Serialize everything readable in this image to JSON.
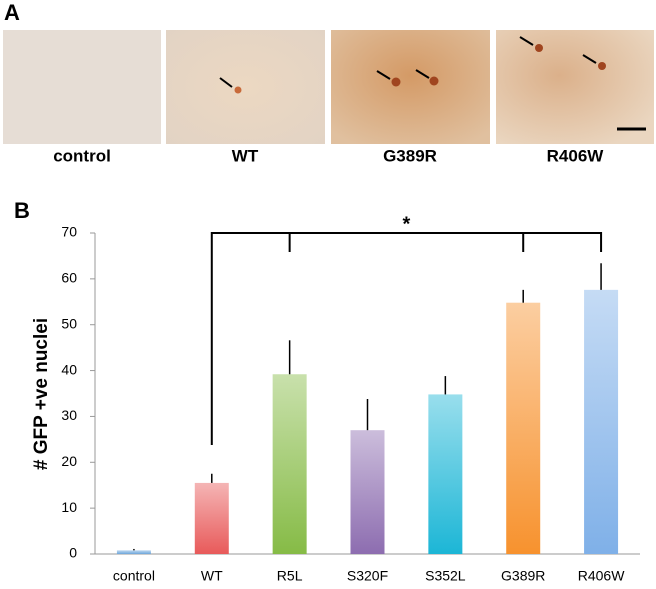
{
  "panel_a": {
    "label": "A",
    "images": [
      "control",
      "WT",
      "G389R",
      "R406W"
    ]
  },
  "panel_b": {
    "label": "B"
  },
  "chart_data": {
    "type": "bar",
    "categories": [
      "control",
      "WT",
      "R5L",
      "S320F",
      "S352L",
      "G389R",
      "R406W"
    ],
    "values": [
      0.8,
      15.5,
      39.2,
      27,
      34.8,
      54.8,
      57.6
    ],
    "errors": [
      0.3,
      2,
      7.4,
      6.8,
      4,
      2.8,
      5.8
    ],
    "colors": [
      "#6fa8dc",
      "#e85a5a",
      "#86bb46",
      "#8d6db0",
      "#1cb6d6",
      "#f7922e",
      "#7fb0e8"
    ],
    "ylabel": "# GFP +ve nuclei",
    "annotation": "*",
    "ylim": [
      0,
      70
    ],
    "yticks": [
      0,
      10,
      20,
      30,
      40,
      50,
      60,
      70
    ]
  }
}
